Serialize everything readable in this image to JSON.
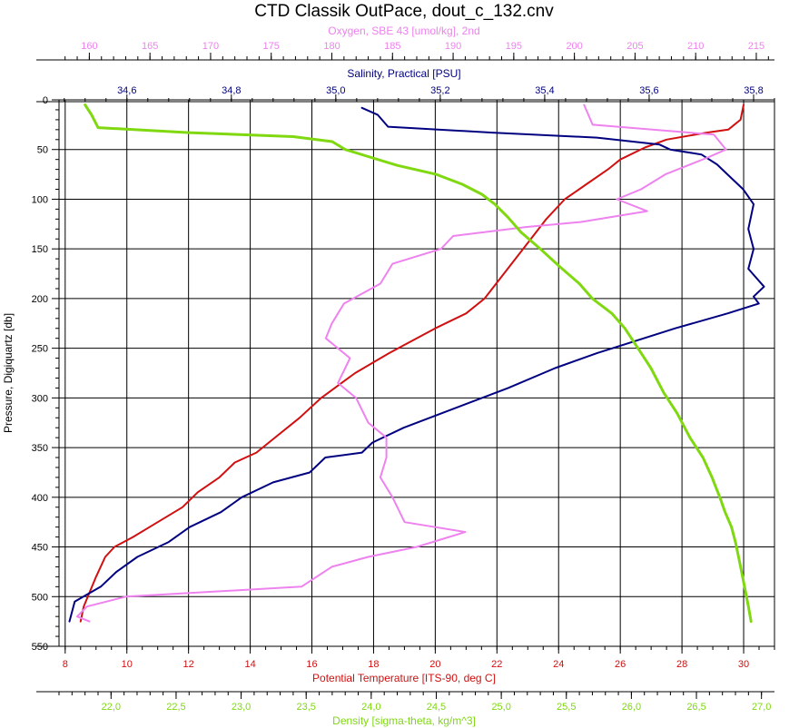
{
  "chart_data": {
    "type": "line",
    "title": "CTD Classik OutPace, dout_c_132.cnv",
    "y_axis": {
      "label": "Pressure, Digiquartz [db]",
      "range": [
        0,
        550
      ],
      "inverted": true,
      "ticks": [
        "0",
        "50",
        "100",
        "150",
        "200",
        "250",
        "300",
        "350",
        "400",
        "450",
        "500",
        "550"
      ]
    },
    "axes": {
      "oxygen": {
        "label": "Oxygen, SBE 43 [umol/kg], 2nd",
        "position": "top",
        "range": [
          157.5,
          216.5
        ],
        "color": "#ee82ee",
        "ticks": [
          "160",
          "165",
          "170",
          "175",
          "180",
          "185",
          "190",
          "195",
          "200",
          "205",
          "210",
          "215"
        ]
      },
      "salinity": {
        "label": "Salinity, Practical [PSU]",
        "position": "top",
        "range": [
          34.47,
          35.84
        ],
        "color": "#000080",
        "ticks": [
          "34,6",
          "34,8",
          "35,0",
          "35,2",
          "35,4",
          "35,6",
          "35,8"
        ]
      },
      "temperature": {
        "label": "Potential Temperature [ITS-90, deg C]",
        "position": "bottom",
        "range": [
          7.8,
          31.0
        ],
        "color": "#d01010",
        "ticks": [
          "8",
          "10",
          "12",
          "14",
          "16",
          "18",
          "20",
          "22",
          "24",
          "26",
          "28",
          "30"
        ]
      },
      "density": {
        "label": "Density [sigma-theta, kg/m^3]",
        "position": "bottom",
        "range": [
          21.6,
          27.1
        ],
        "color": "#7fd810",
        "ticks": [
          "22,0",
          "22,5",
          "23,0",
          "23,5",
          "24,0",
          "24,5",
          "25,0",
          "25,5",
          "26,0",
          "26,5",
          "27,0"
        ]
      }
    },
    "grid": true,
    "series": [
      {
        "name": "Potential Temperature",
        "axis": "temperature",
        "color": "#d01010",
        "points": [
          [
            30.0,
            5
          ],
          [
            29.9,
            20
          ],
          [
            29.5,
            30
          ],
          [
            28.8,
            33
          ],
          [
            27.5,
            40
          ],
          [
            26.8,
            48
          ],
          [
            26.0,
            60
          ],
          [
            25.6,
            70
          ],
          [
            24.9,
            85
          ],
          [
            24.2,
            100
          ],
          [
            23.6,
            120
          ],
          [
            23.1,
            140
          ],
          [
            22.6,
            160
          ],
          [
            22.1,
            180
          ],
          [
            21.6,
            200
          ],
          [
            21.0,
            215
          ],
          [
            20.0,
            230
          ],
          [
            18.5,
            255
          ],
          [
            17.4,
            275
          ],
          [
            16.3,
            300
          ],
          [
            15.6,
            320
          ],
          [
            14.8,
            340
          ],
          [
            14.2,
            355
          ],
          [
            13.5,
            365
          ],
          [
            13.0,
            380
          ],
          [
            12.3,
            395
          ],
          [
            11.8,
            410
          ],
          [
            11.0,
            425
          ],
          [
            10.2,
            440
          ],
          [
            9.6,
            450
          ],
          [
            9.3,
            460
          ],
          [
            9.0,
            480
          ],
          [
            8.8,
            495
          ],
          [
            8.6,
            510
          ],
          [
            8.5,
            525
          ]
        ]
      },
      {
        "name": "Salinity",
        "axis": "salinity",
        "color": "#000080",
        "points": [
          [
            35.05,
            8
          ],
          [
            35.08,
            15
          ],
          [
            35.1,
            27
          ],
          [
            35.3,
            33
          ],
          [
            35.5,
            38
          ],
          [
            35.62,
            45
          ],
          [
            35.64,
            50
          ],
          [
            35.7,
            55
          ],
          [
            35.73,
            65
          ],
          [
            35.75,
            75
          ],
          [
            35.78,
            90
          ],
          [
            35.8,
            105
          ],
          [
            35.79,
            130
          ],
          [
            35.8,
            150
          ],
          [
            35.79,
            170
          ],
          [
            35.82,
            188
          ],
          [
            35.8,
            198
          ],
          [
            35.81,
            205
          ],
          [
            35.75,
            215
          ],
          [
            35.65,
            230
          ],
          [
            35.5,
            255
          ],
          [
            35.42,
            270
          ],
          [
            35.33,
            290
          ],
          [
            35.23,
            310
          ],
          [
            35.13,
            330
          ],
          [
            35.07,
            345
          ],
          [
            35.05,
            355
          ],
          [
            34.98,
            360
          ],
          [
            34.95,
            375
          ],
          [
            34.88,
            385
          ],
          [
            34.82,
            400
          ],
          [
            34.78,
            415
          ],
          [
            34.72,
            430
          ],
          [
            34.68,
            445
          ],
          [
            34.62,
            460
          ],
          [
            34.58,
            475
          ],
          [
            34.55,
            490
          ],
          [
            34.5,
            505
          ],
          [
            34.49,
            525
          ]
        ]
      },
      {
        "name": "Oxygen",
        "axis": "oxygen",
        "color": "#ee82ee",
        "points": [
          [
            200.8,
            5
          ],
          [
            201.5,
            25
          ],
          [
            211.5,
            35
          ],
          [
            212.5,
            50
          ],
          [
            211.0,
            58
          ],
          [
            207.5,
            75
          ],
          [
            205.5,
            90
          ],
          [
            203.5,
            100
          ],
          [
            206.0,
            112
          ],
          [
            200.5,
            123
          ],
          [
            196.0,
            128
          ],
          [
            190.0,
            137
          ],
          [
            189.0,
            150
          ],
          [
            185.0,
            165
          ],
          [
            184.0,
            185
          ],
          [
            181.0,
            205
          ],
          [
            180.0,
            225
          ],
          [
            179.5,
            240
          ],
          [
            181.5,
            260
          ],
          [
            180.5,
            285
          ],
          [
            182.0,
            300
          ],
          [
            183.0,
            325
          ],
          [
            184.5,
            340
          ],
          [
            184.5,
            360
          ],
          [
            184.0,
            380
          ],
          [
            185.0,
            400
          ],
          [
            186.0,
            425
          ],
          [
            191.0,
            435
          ],
          [
            187.0,
            450
          ],
          [
            183.0,
            460
          ],
          [
            180.0,
            470
          ],
          [
            177.5,
            490
          ],
          [
            163.0,
            500
          ],
          [
            159.8,
            510
          ],
          [
            159.0,
            520
          ],
          [
            160.0,
            525
          ]
        ]
      },
      {
        "name": "Density",
        "axis": "density",
        "color": "#7fd810",
        "points": [
          [
            21.8,
            5
          ],
          [
            21.85,
            15
          ],
          [
            21.9,
            28
          ],
          [
            22.6,
            33
          ],
          [
            23.4,
            37
          ],
          [
            23.7,
            42
          ],
          [
            23.8,
            50
          ],
          [
            24.0,
            58
          ],
          [
            24.2,
            66
          ],
          [
            24.5,
            75
          ],
          [
            24.7,
            85
          ],
          [
            24.85,
            95
          ],
          [
            24.95,
            105
          ],
          [
            25.05,
            118
          ],
          [
            25.15,
            133
          ],
          [
            25.3,
            150
          ],
          [
            25.45,
            168
          ],
          [
            25.6,
            185
          ],
          [
            25.7,
            200
          ],
          [
            25.85,
            215
          ],
          [
            25.95,
            230
          ],
          [
            26.05,
            250
          ],
          [
            26.15,
            270
          ],
          [
            26.25,
            295
          ],
          [
            26.35,
            315
          ],
          [
            26.45,
            340
          ],
          [
            26.55,
            360
          ],
          [
            26.62,
            380
          ],
          [
            26.68,
            400
          ],
          [
            26.72,
            415
          ],
          [
            26.77,
            430
          ],
          [
            26.8,
            445
          ],
          [
            26.84,
            470
          ],
          [
            26.87,
            490
          ],
          [
            26.9,
            510
          ],
          [
            26.92,
            525
          ]
        ]
      }
    ]
  }
}
